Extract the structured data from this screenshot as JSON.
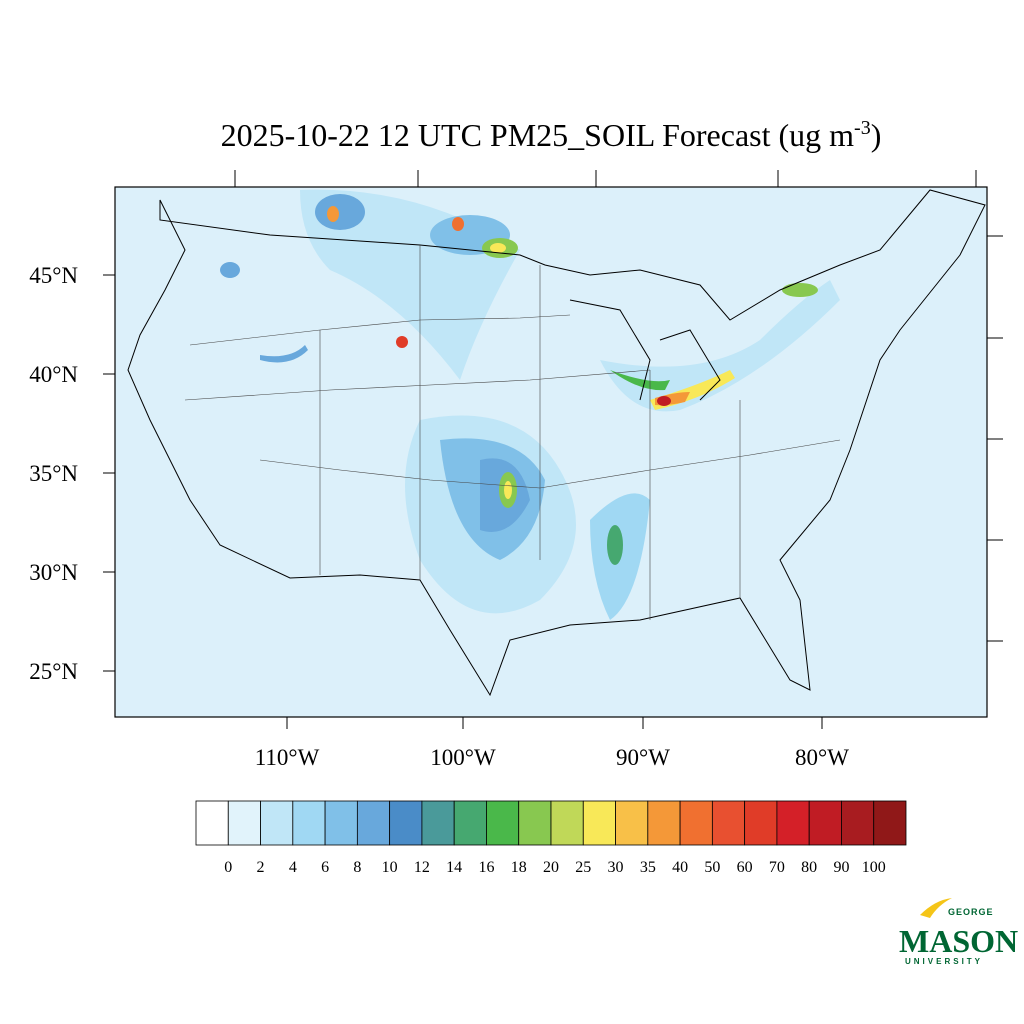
{
  "title": {
    "main": "2025-10-22 12 UTC PM25_SOIL Forecast (ug m",
    "superscript": "-3",
    "end": ")"
  },
  "latitude_labels": [
    "45°N",
    "40°N",
    "35°N",
    "30°N",
    "25°N"
  ],
  "longitude_labels": [
    "110°W",
    "100°W",
    "90°W",
    "80°W"
  ],
  "colorbar": {
    "labels": [
      "0",
      "2",
      "4",
      "6",
      "8",
      "10",
      "12",
      "14",
      "16",
      "18",
      "20",
      "25",
      "30",
      "35",
      "40",
      "50",
      "60",
      "70",
      "80",
      "90",
      "100"
    ],
    "colors": [
      "#ffffff",
      "#e1f3fb",
      "#c0e6f7",
      "#a0d8f3",
      "#80c0e8",
      "#68a8dc",
      "#4a8cc8",
      "#4a9a9a",
      "#46a870",
      "#4ab84a",
      "#88c850",
      "#c0d858",
      "#f8e858",
      "#f8c048",
      "#f49838",
      "#f07030",
      "#e85030",
      "#e03c28",
      "#d42028",
      "#c01c24",
      "#a81c20",
      "#901818"
    ]
  },
  "logo": {
    "top": "GEORGE",
    "name": "MASON",
    "bottom": "UNIVERSITY"
  }
}
